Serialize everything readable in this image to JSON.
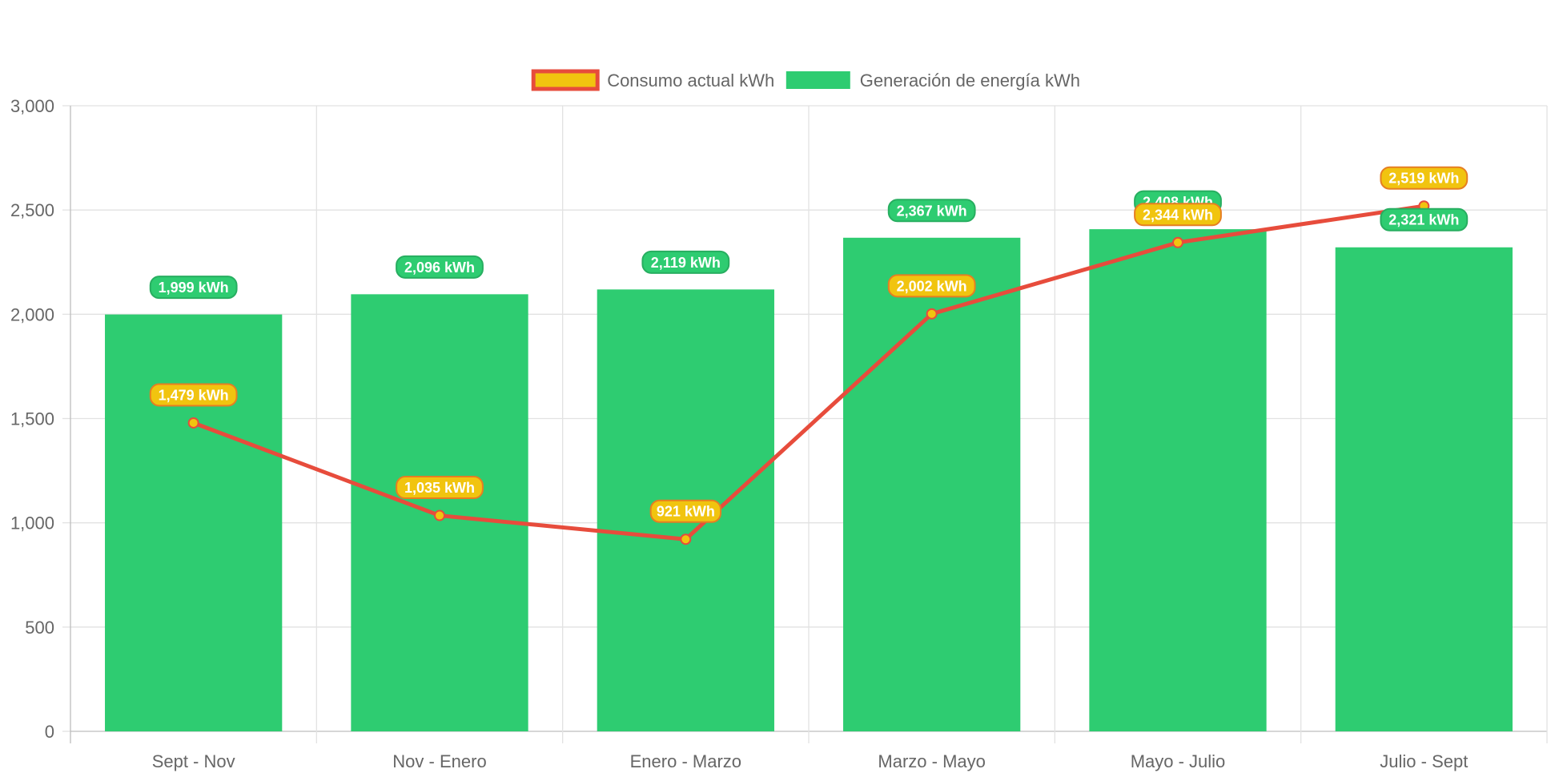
{
  "chart_data": {
    "type": "bar",
    "categories": [
      "Sept - Nov",
      "Nov - Enero",
      "Enero - Marzo",
      "Marzo - Mayo",
      "Mayo - Julio",
      "Julio - Sept"
    ],
    "series": [
      {
        "name": "Consumo actual kWh",
        "type": "line",
        "values": [
          1479,
          1035,
          921,
          2002,
          2344,
          2519
        ],
        "color": "#e74c3c",
        "fill_color": "#f1c40f",
        "labels": [
          "1,479 kWh",
          "1,035 kWh",
          "921 kWh",
          "2,002 kWh",
          "2,344 kWh",
          "2,519 kWh"
        ]
      },
      {
        "name": "Generación de energía kWh",
        "type": "bar",
        "values": [
          1999,
          2096,
          2119,
          2367,
          2408,
          2321
        ],
        "color": "#2ecc71",
        "labels": [
          "1,999 kWh",
          "2,096 kWh",
          "2,119 kWh",
          "2,367 kWh",
          "2,408 kWh",
          "2,321 kWh"
        ]
      }
    ],
    "ylim": [
      0,
      3000
    ],
    "yticks": [
      "0",
      "500",
      "1,000",
      "1,500",
      "2,000",
      "2,500",
      "3,000"
    ],
    "grid": true,
    "legend_position": "top"
  }
}
